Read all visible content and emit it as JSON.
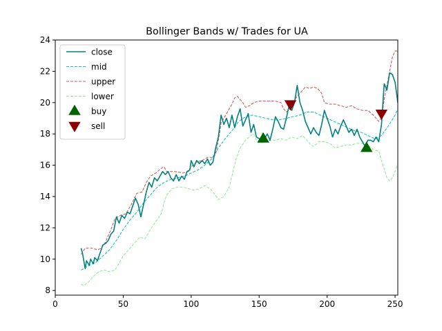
{
  "chart_data": {
    "type": "line",
    "title": "Bollinger Bands w/ Trades for UA",
    "xlabel": "",
    "ylabel": "",
    "xlim": [
      0,
      252
    ],
    "ylim": [
      7.7,
      24
    ],
    "x_ticks": [
      0,
      50,
      100,
      150,
      200,
      250
    ],
    "y_ticks": [
      8,
      10,
      12,
      14,
      16,
      18,
      20,
      22,
      24
    ],
    "grid": false,
    "legend_position": "top-left",
    "series": [
      {
        "name": "close",
        "style": "solid",
        "color": "#008080",
        "points": [
          [
            19,
            10.7
          ],
          [
            20,
            10.4
          ],
          [
            22,
            9.4
          ],
          [
            23,
            9.9
          ],
          [
            25,
            9.6
          ],
          [
            26,
            10.0
          ],
          [
            28,
            9.7
          ],
          [
            29,
            10.1
          ],
          [
            31,
            9.9
          ],
          [
            33,
            10.4
          ],
          [
            35,
            10.9
          ],
          [
            37,
            11.0
          ],
          [
            39,
            11.2
          ],
          [
            41,
            11.6
          ],
          [
            43,
            11.8
          ],
          [
            45,
            12.7
          ],
          [
            47,
            12.3
          ],
          [
            49,
            12.8
          ],
          [
            51,
            12.6
          ],
          [
            53,
            13.0
          ],
          [
            55,
            12.9
          ],
          [
            57,
            13.4
          ],
          [
            59,
            13.9
          ],
          [
            61,
            13.5
          ],
          [
            63,
            12.7
          ],
          [
            65,
            13.5
          ],
          [
            67,
            14.3
          ],
          [
            69,
            14.9
          ],
          [
            71,
            14.6
          ],
          [
            73,
            15.2
          ],
          [
            75,
            15.0
          ],
          [
            77,
            15.3
          ],
          [
            79,
            15.6
          ],
          [
            81,
            15.4
          ],
          [
            83,
            15.6
          ],
          [
            85,
            15.2
          ],
          [
            87,
            15.0
          ],
          [
            89,
            15.4
          ],
          [
            91,
            15.0
          ],
          [
            93,
            15.3
          ],
          [
            95,
            15.1
          ],
          [
            97,
            15.6
          ],
          [
            99,
            15.7
          ],
          [
            100,
            16.3
          ],
          [
            102,
            15.9
          ],
          [
            104,
            16.3
          ],
          [
            106,
            16.1
          ],
          [
            108,
            16.3
          ],
          [
            110,
            16.1
          ],
          [
            112,
            16.4
          ],
          [
            114,
            16.0
          ],
          [
            116,
            16.2
          ],
          [
            118,
            17.1
          ],
          [
            120,
            17.8
          ],
          [
            122,
            19.2
          ],
          [
            124,
            18.6
          ],
          [
            126,
            19.0
          ],
          [
            128,
            18.4
          ],
          [
            130,
            19.2
          ],
          [
            132,
            18.4
          ],
          [
            134,
            19.1
          ],
          [
            136,
            19.6
          ],
          [
            138,
            18.5
          ],
          [
            140,
            18.9
          ],
          [
            142,
            19.3
          ],
          [
            144,
            18.1
          ],
          [
            146,
            18.6
          ],
          [
            148,
            17.8
          ],
          [
            150,
            17.7
          ],
          [
            152,
            17.6
          ],
          [
            154,
            17.7
          ],
          [
            156,
            18.0
          ],
          [
            158,
            17.6
          ],
          [
            160,
            18.3
          ],
          [
            162,
            19.1
          ],
          [
            164,
            18.8
          ],
          [
            166,
            18.4
          ],
          [
            168,
            18.3
          ],
          [
            170,
            19.0
          ],
          [
            172,
            19.8
          ],
          [
            174,
            19.5
          ],
          [
            176,
            20.0
          ],
          [
            178,
            21.1
          ],
          [
            180,
            20.0
          ],
          [
            182,
            19.5
          ],
          [
            184,
            18.8
          ],
          [
            186,
            18.4
          ],
          [
            188,
            18.0
          ],
          [
            190,
            18.4
          ],
          [
            192,
            18.1
          ],
          [
            194,
            17.9
          ],
          [
            196,
            18.6
          ],
          [
            198,
            19.5
          ],
          [
            200,
            19.0
          ],
          [
            202,
            18.5
          ],
          [
            204,
            17.8
          ],
          [
            206,
            18.3
          ],
          [
            208,
            18.0
          ],
          [
            210,
            18.5
          ],
          [
            212,
            18.9
          ],
          [
            214,
            18.5
          ],
          [
            216,
            18.1
          ],
          [
            218,
            18.3
          ],
          [
            220,
            17.9
          ],
          [
            222,
            18.3
          ],
          [
            224,
            17.8
          ],
          [
            226,
            17.5
          ],
          [
            228,
            17.2
          ],
          [
            230,
            17.6
          ],
          [
            232,
            17.6
          ],
          [
            234,
            17.5
          ],
          [
            236,
            17.8
          ],
          [
            238,
            17.5
          ],
          [
            240,
            18.6
          ],
          [
            242,
            21.2
          ],
          [
            244,
            20.8
          ],
          [
            246,
            21.9
          ],
          [
            248,
            21.8
          ],
          [
            250,
            21.3
          ],
          [
            252,
            20.0
          ]
        ]
      },
      {
        "name": "mid",
        "style": "dashed",
        "color": "#17becf",
        "points": [
          [
            19,
            9.3
          ],
          [
            25,
            9.6
          ],
          [
            30,
            9.8
          ],
          [
            35,
            10.2
          ],
          [
            40,
            10.6
          ],
          [
            45,
            11.2
          ],
          [
            50,
            11.9
          ],
          [
            55,
            12.5
          ],
          [
            60,
            13.0
          ],
          [
            65,
            13.6
          ],
          [
            70,
            14.1
          ],
          [
            75,
            14.6
          ],
          [
            80,
            14.9
          ],
          [
            85,
            15.1
          ],
          [
            90,
            15.2
          ],
          [
            95,
            15.3
          ],
          [
            100,
            15.5
          ],
          [
            105,
            15.7
          ],
          [
            110,
            16.0
          ],
          [
            115,
            16.4
          ],
          [
            120,
            17.1
          ],
          [
            125,
            17.7
          ],
          [
            130,
            18.2
          ],
          [
            135,
            18.8
          ],
          [
            140,
            19.1
          ],
          [
            145,
            19.2
          ],
          [
            150,
            19.1
          ],
          [
            155,
            19.0
          ],
          [
            160,
            18.9
          ],
          [
            165,
            18.9
          ],
          [
            170,
            19.0
          ],
          [
            175,
            19.1
          ],
          [
            180,
            19.2
          ],
          [
            185,
            19.4
          ],
          [
            190,
            19.4
          ],
          [
            195,
            19.2
          ],
          [
            200,
            19.0
          ],
          [
            205,
            18.8
          ],
          [
            210,
            18.6
          ],
          [
            215,
            18.4
          ],
          [
            220,
            18.2
          ],
          [
            225,
            18.1
          ],
          [
            230,
            17.9
          ],
          [
            235,
            17.7
          ],
          [
            240,
            17.9
          ],
          [
            245,
            18.5
          ],
          [
            250,
            19.2
          ],
          [
            252,
            19.6
          ]
        ]
      },
      {
        "name": "upper",
        "style": "dashed",
        "color": "#cd5c5c",
        "points": [
          [
            19,
            10.3
          ],
          [
            22,
            10.7
          ],
          [
            27,
            10.7
          ],
          [
            31,
            10.6
          ],
          [
            34,
            10.7
          ],
          [
            37,
            11.1
          ],
          [
            41,
            11.9
          ],
          [
            44,
            12.6
          ],
          [
            48,
            12.8
          ],
          [
            52,
            12.9
          ],
          [
            56,
            13.5
          ],
          [
            60,
            14.2
          ],
          [
            64,
            14.3
          ],
          [
            67,
            14.9
          ],
          [
            70,
            15.3
          ],
          [
            74,
            15.5
          ],
          [
            78,
            15.8
          ],
          [
            80,
            15.9
          ],
          [
            82,
            15.6
          ],
          [
            88,
            15.6
          ],
          [
            94,
            15.5
          ],
          [
            98,
            15.6
          ],
          [
            100,
            15.9
          ],
          [
            104,
            16.2
          ],
          [
            108,
            16.3
          ],
          [
            112,
            16.5
          ],
          [
            116,
            16.5
          ],
          [
            118,
            16.7
          ],
          [
            120,
            17.6
          ],
          [
            122,
            18.7
          ],
          [
            126,
            19.3
          ],
          [
            130,
            19.9
          ],
          [
            132,
            20.3
          ],
          [
            134,
            20.4
          ],
          [
            138,
            20.0
          ],
          [
            140,
            19.7
          ],
          [
            143,
            19.8
          ],
          [
            146,
            20.0
          ],
          [
            150,
            20.1
          ],
          [
            156,
            20.1
          ],
          [
            162,
            20.1
          ],
          [
            166,
            20.0
          ],
          [
            168,
            19.6
          ],
          [
            170,
            19.4
          ],
          [
            174,
            19.7
          ],
          [
            177,
            20.3
          ],
          [
            180,
            20.6
          ],
          [
            184,
            21.0
          ],
          [
            187,
            20.9
          ],
          [
            190,
            21.0
          ],
          [
            193,
            20.9
          ],
          [
            196,
            20.6
          ],
          [
            198,
            20.0
          ],
          [
            202,
            19.9
          ],
          [
            206,
            19.9
          ],
          [
            210,
            19.8
          ],
          [
            214,
            19.7
          ],
          [
            218,
            19.8
          ],
          [
            222,
            19.6
          ],
          [
            226,
            19.5
          ],
          [
            230,
            19.5
          ],
          [
            234,
            19.2
          ],
          [
            236,
            19.0
          ],
          [
            238,
            18.8
          ],
          [
            240,
            19.0
          ],
          [
            242,
            20.2
          ],
          [
            246,
            22.0
          ],
          [
            248,
            22.9
          ],
          [
            250,
            23.3
          ],
          [
            252,
            23.3
          ]
        ]
      },
      {
        "name": "lower",
        "style": "dashed",
        "color": "#90ee90",
        "points": [
          [
            19,
            8.4
          ],
          [
            21,
            8.3
          ],
          [
            24,
            8.5
          ],
          [
            28,
            8.9
          ],
          [
            32,
            9.2
          ],
          [
            36,
            9.3
          ],
          [
            40,
            9.2
          ],
          [
            44,
            9.3
          ],
          [
            46,
            9.6
          ],
          [
            50,
            10.2
          ],
          [
            54,
            10.6
          ],
          [
            58,
            11.0
          ],
          [
            62,
            11.4
          ],
          [
            66,
            11.3
          ],
          [
            70,
            11.9
          ],
          [
            74,
            12.4
          ],
          [
            78,
            12.9
          ],
          [
            80,
            13.6
          ],
          [
            82,
            14.1
          ],
          [
            86,
            14.5
          ],
          [
            90,
            14.6
          ],
          [
            94,
            14.6
          ],
          [
            98,
            14.5
          ],
          [
            102,
            14.4
          ],
          [
            106,
            14.5
          ],
          [
            110,
            14.7
          ],
          [
            114,
            14.5
          ],
          [
            117,
            14.2
          ],
          [
            120,
            13.8
          ],
          [
            124,
            14.0
          ],
          [
            128,
            14.6
          ],
          [
            130,
            15.3
          ],
          [
            133,
            16.4
          ],
          [
            136,
            17.1
          ],
          [
            140,
            17.6
          ],
          [
            144,
            17.9
          ],
          [
            146,
            18.0
          ],
          [
            148,
            17.6
          ],
          [
            150,
            17.4
          ],
          [
            154,
            17.5
          ],
          [
            158,
            17.6
          ],
          [
            162,
            17.6
          ],
          [
            166,
            17.7
          ],
          [
            170,
            17.6
          ],
          [
            174,
            17.8
          ],
          [
            178,
            17.7
          ],
          [
            182,
            17.9
          ],
          [
            186,
            17.5
          ],
          [
            188,
            17.3
          ],
          [
            190,
            17.2
          ],
          [
            194,
            17.5
          ],
          [
            198,
            17.5
          ],
          [
            202,
            17.4
          ],
          [
            206,
            17.1
          ],
          [
            210,
            17.2
          ],
          [
            214,
            17.3
          ],
          [
            218,
            17.3
          ],
          [
            222,
            17.4
          ],
          [
            226,
            17.4
          ],
          [
            230,
            17.3
          ],
          [
            234,
            17.0
          ],
          [
            238,
            16.9
          ],
          [
            240,
            16.3
          ],
          [
            244,
            15.2
          ],
          [
            246,
            15.0
          ],
          [
            248,
            15.2
          ],
          [
            250,
            15.6
          ],
          [
            252,
            16.1
          ]
        ]
      }
    ],
    "markers": [
      {
        "name": "buy",
        "shape": "triangle-up",
        "color": "#006400",
        "points": [
          [
            153,
            17.7
          ],
          [
            229,
            17.1
          ]
        ]
      },
      {
        "name": "sell",
        "shape": "triangle-down",
        "color": "#8b0000",
        "points": [
          [
            173,
            19.9
          ],
          [
            240,
            19.3
          ]
        ]
      }
    ]
  }
}
